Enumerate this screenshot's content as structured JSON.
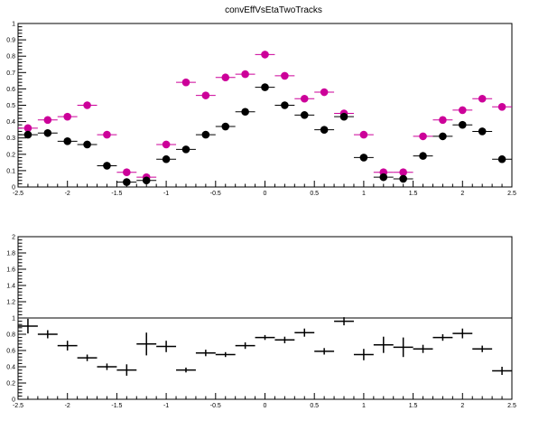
{
  "title": "convEffVsEtaTwoTracks",
  "colors": {
    "series1": "#cc0099",
    "series2": "#000000",
    "frame": "#000000",
    "refline": "#000000"
  },
  "chart_data": [
    {
      "type": "scatter",
      "title": "convEffVsEtaTwoTracks",
      "xlabel": "",
      "ylabel": "",
      "xlim": [
        -2.5,
        2.5
      ],
      "ylim": [
        0,
        1
      ],
      "x_ticks": [
        "-2.5",
        "-2",
        "-1.5",
        "-1",
        "-0.5",
        "0",
        "0.5",
        "1",
        "1.5",
        "2",
        "2.5"
      ],
      "y_ticks": [
        "0",
        "0.1",
        "0.2",
        "0.3",
        "0.4",
        "0.5",
        "0.6",
        "0.7",
        "0.8",
        "0.9",
        "1"
      ],
      "bin_half_width": 0.1,
      "x": [
        -2.4,
        -2.2,
        -2.0,
        -1.8,
        -1.6,
        -1.4,
        -1.2,
        -1.0,
        -0.8,
        -0.6,
        -0.4,
        -0.2,
        0.0,
        0.2,
        0.4,
        0.6,
        0.8,
        1.0,
        1.2,
        1.4,
        1.6,
        1.8,
        2.0,
        2.2,
        2.4
      ],
      "series": [
        {
          "values": [
            0.36,
            0.41,
            0.43,
            0.5,
            0.32,
            0.09,
            0.06,
            0.26,
            0.64,
            0.56,
            0.67,
            0.69,
            0.81,
            0.68,
            0.54,
            0.58,
            0.45,
            0.32,
            0.09,
            0.09,
            0.31,
            0.41,
            0.47,
            0.54,
            0.49
          ]
        },
        {
          "values": [
            0.32,
            0.33,
            0.28,
            0.26,
            0.13,
            0.03,
            0.04,
            0.17,
            0.23,
            0.32,
            0.37,
            0.46,
            0.61,
            0.5,
            0.44,
            0.35,
            0.43,
            0.18,
            0.06,
            0.05,
            0.19,
            0.31,
            0.38,
            0.34,
            0.17
          ]
        }
      ]
    },
    {
      "type": "scatter",
      "title": "",
      "xlabel": "",
      "ylabel": "",
      "xlim": [
        -2.5,
        2.5
      ],
      "ylim": [
        0,
        2
      ],
      "x_ticks": [
        "-2.5",
        "-2",
        "-1.5",
        "-1",
        "-0.5",
        "0",
        "0.5",
        "1",
        "1.5",
        "2",
        "2.5"
      ],
      "y_ticks": [
        "0",
        "0.2",
        "0.4",
        "0.6",
        "0.8",
        "1",
        "1.2",
        "1.4",
        "1.6",
        "1.8",
        "2"
      ],
      "reference_line": 1,
      "bin_half_width": 0.1,
      "x": [
        -2.4,
        -2.2,
        -2.0,
        -1.8,
        -1.6,
        -1.4,
        -1.2,
        -1.0,
        -0.8,
        -0.6,
        -0.4,
        -0.2,
        0.0,
        0.2,
        0.4,
        0.6,
        0.8,
        1.0,
        1.2,
        1.4,
        1.6,
        1.8,
        2.0,
        2.2,
        2.4
      ],
      "series": [
        {
          "values": [
            0.9,
            0.8,
            0.66,
            0.51,
            0.4,
            0.36,
            0.68,
            0.65,
            0.36,
            0.57,
            0.55,
            0.66,
            0.76,
            0.73,
            0.82,
            0.59,
            0.96,
            0.55,
            0.67,
            0.64,
            0.62,
            0.76,
            0.81,
            0.62,
            0.35
          ],
          "errors": [
            0.09,
            0.05,
            0.06,
            0.04,
            0.04,
            0.07,
            0.14,
            0.07,
            0.03,
            0.04,
            0.03,
            0.04,
            0.03,
            0.04,
            0.05,
            0.04,
            0.05,
            0.07,
            0.1,
            0.12,
            0.05,
            0.04,
            0.06,
            0.04,
            0.05
          ]
        }
      ]
    }
  ]
}
